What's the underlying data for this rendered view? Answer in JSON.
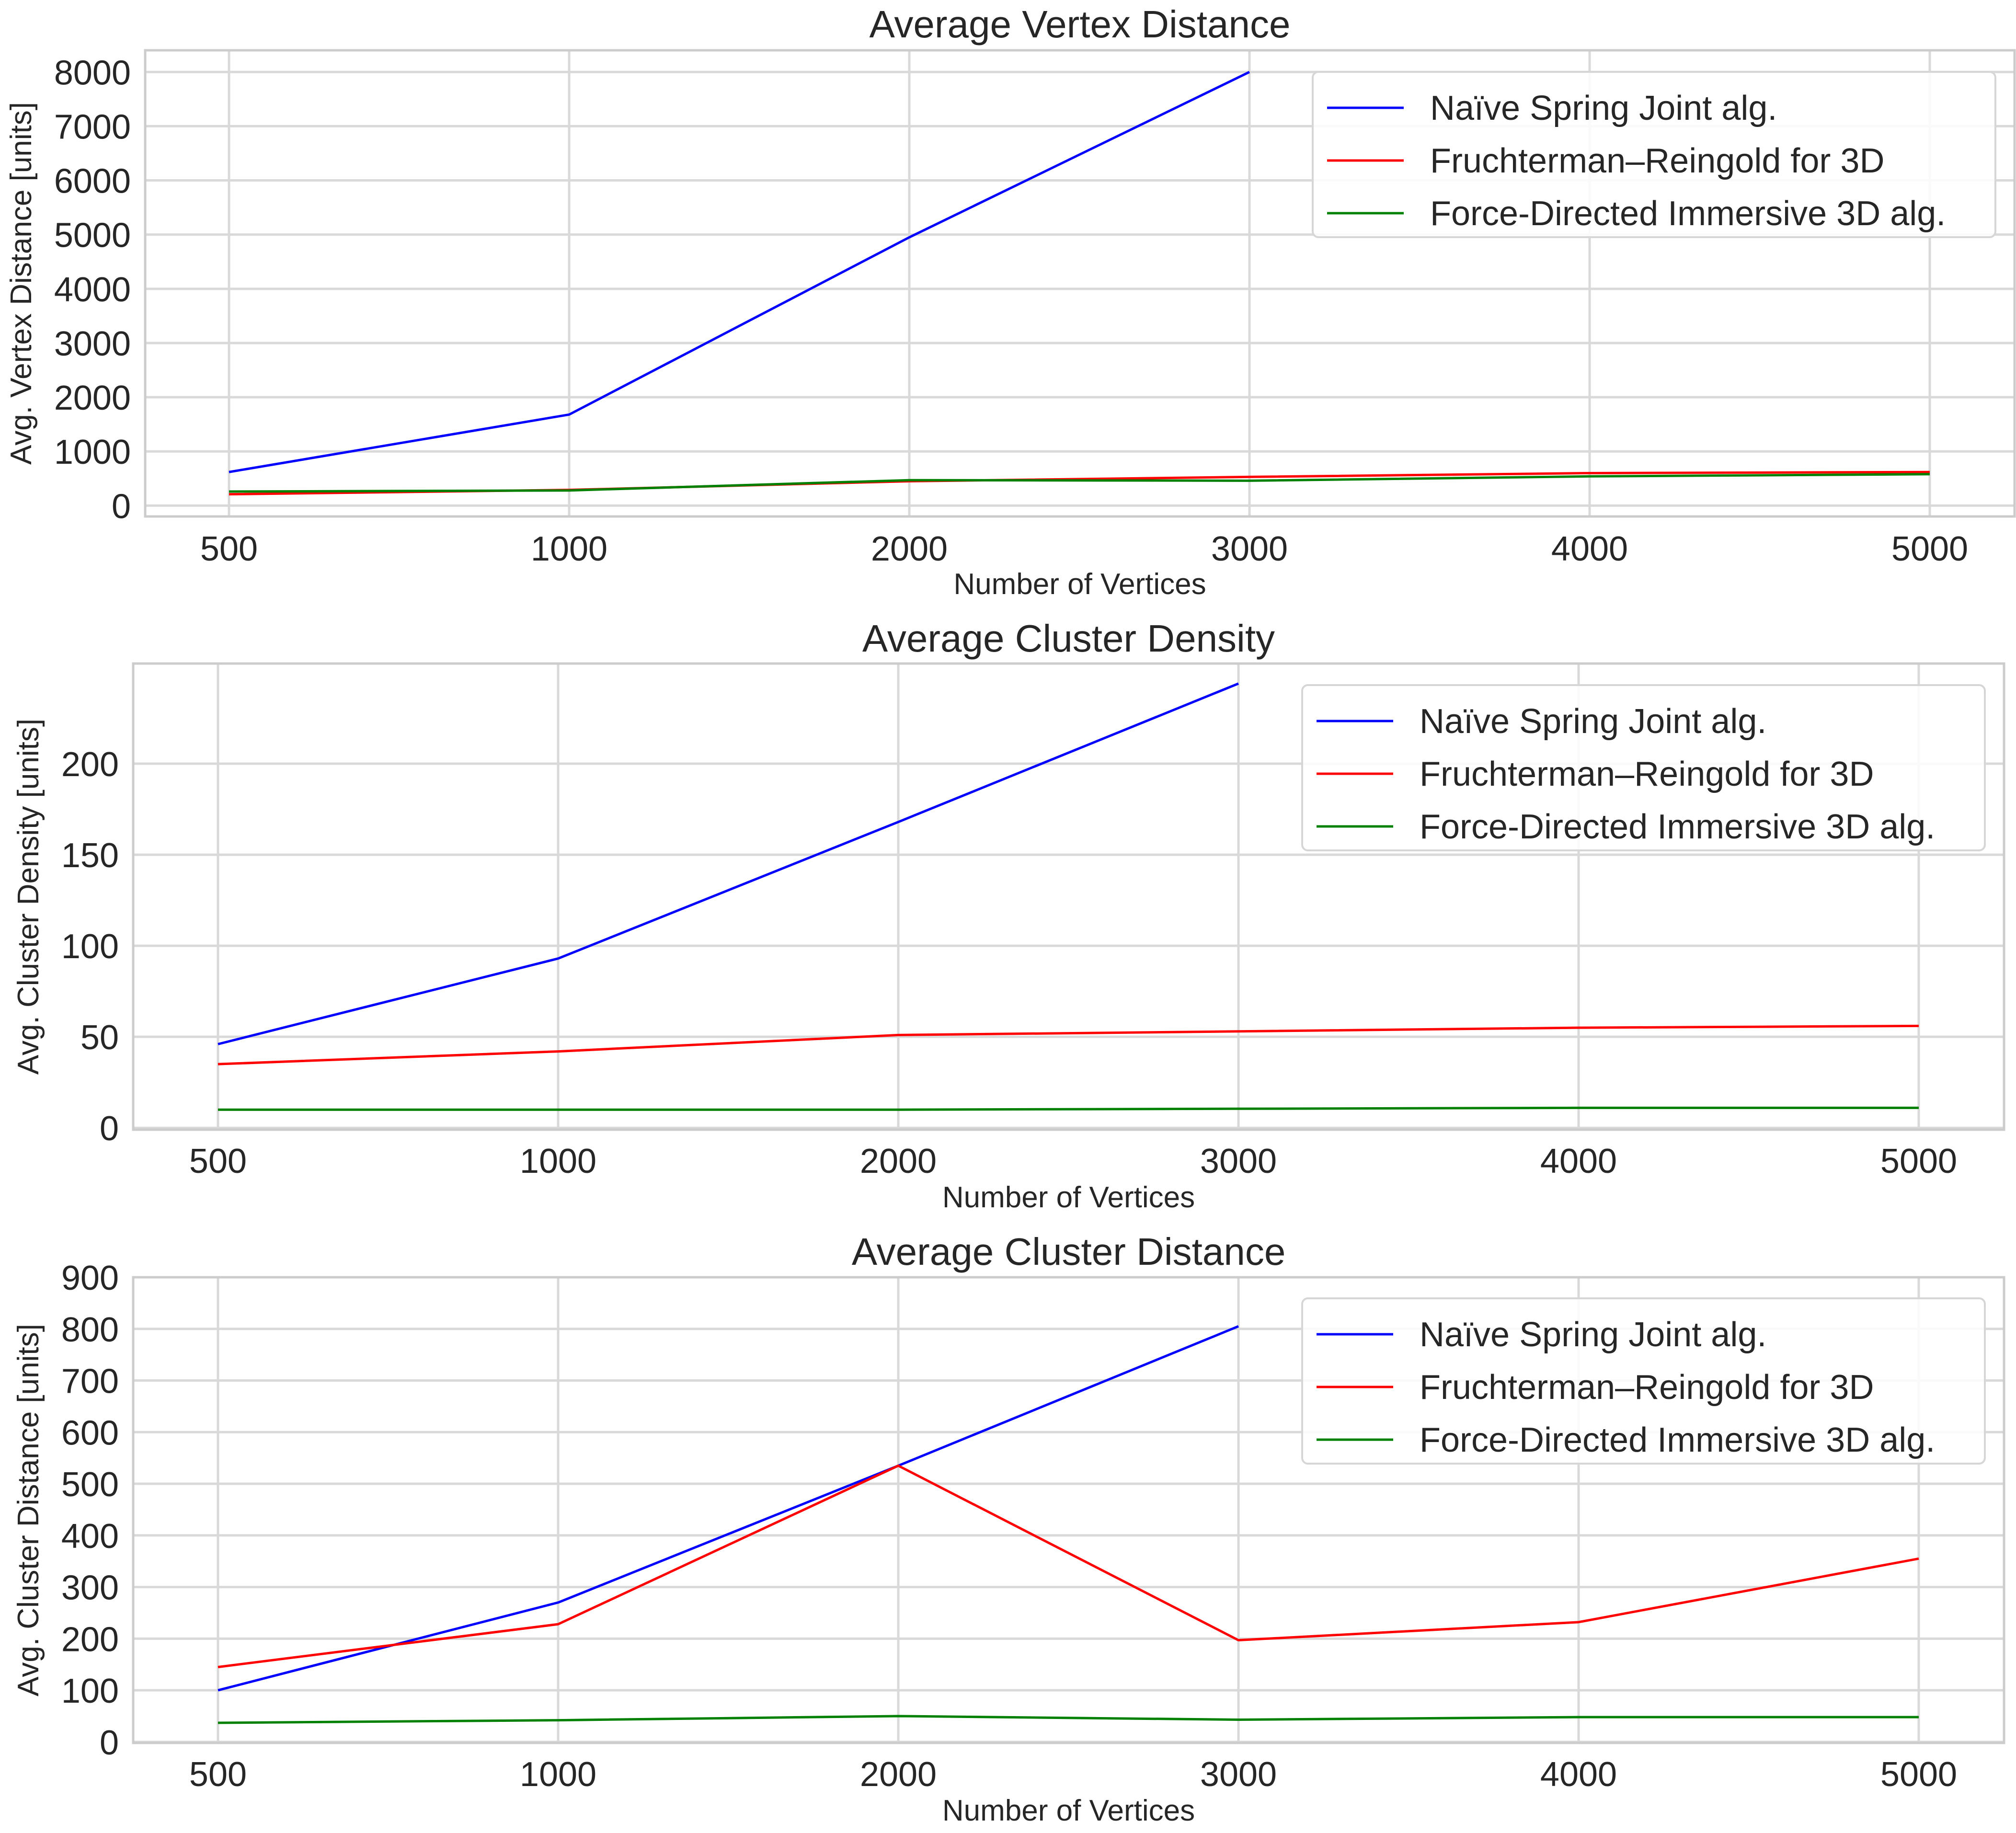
{
  "chart_data": [
    {
      "type": "line",
      "title": "Average Vertex Distance",
      "xlabel": "Number of Vertices",
      "ylabel": "Avg. Vertex Distance [units]",
      "categories": [
        "500",
        "1000",
        "2000",
        "3000",
        "4000",
        "5000"
      ],
      "y_ticks": [
        "0",
        "1000",
        "2000",
        "3000",
        "4000",
        "5000",
        "6000",
        "7000",
        "8000"
      ],
      "ylim": [
        -200,
        8400
      ],
      "grid": true,
      "legend_position": "upper right",
      "series": [
        {
          "name": "Naïve Spring Joint alg.",
          "color": "#0000ff",
          "values": [
            620,
            1680,
            4950,
            8000,
            null,
            null
          ]
        },
        {
          "name": "Fruchterman–Reingold for 3D",
          "color": "#ff0000",
          "values": [
            210,
            290,
            450,
            530,
            600,
            620
          ]
        },
        {
          "name": "Force-Directed Immersive 3D alg.",
          "color": "#008000",
          "values": [
            260,
            280,
            470,
            460,
            540,
            580
          ]
        }
      ]
    },
    {
      "type": "line",
      "title": "Average Cluster Density",
      "xlabel": "Number of Vertices",
      "ylabel": "Avg. Cluster Density [units]",
      "categories": [
        "500",
        "1000",
        "2000",
        "3000",
        "4000",
        "5000"
      ],
      "y_ticks": [
        "0",
        "50",
        "100",
        "150",
        "200"
      ],
      "ylim": [
        -1,
        255
      ],
      "grid": true,
      "legend_position": "upper right",
      "series": [
        {
          "name": "Naïve Spring Joint alg.",
          "color": "#0000ff",
          "values": [
            46,
            93,
            168,
            244,
            null,
            null
          ]
        },
        {
          "name": "Fruchterman–Reingold for 3D",
          "color": "#ff0000",
          "values": [
            35,
            42,
            51,
            53,
            55,
            56
          ]
        },
        {
          "name": "Force-Directed Immersive 3D alg.",
          "color": "#008000",
          "values": [
            10,
            10,
            10,
            10.5,
            11,
            11
          ]
        }
      ]
    },
    {
      "type": "line",
      "title": "Average Cluster Distance",
      "xlabel": "Number of Vertices",
      "ylabel": "Avg. Cluster Distance [units]",
      "categories": [
        "500",
        "1000",
        "2000",
        "3000",
        "4000",
        "5000"
      ],
      "y_ticks": [
        "0",
        "100",
        "200",
        "300",
        "400",
        "500",
        "600",
        "700",
        "800",
        "900"
      ],
      "ylim": [
        -2,
        900
      ],
      "grid": true,
      "legend_position": "upper right",
      "series": [
        {
          "name": "Naïve Spring Joint alg.",
          "color": "#0000ff",
          "values": [
            100,
            270,
            535,
            805,
            null,
            null
          ]
        },
        {
          "name": "Fruchterman–Reingold for 3D",
          "color": "#ff0000",
          "values": [
            145,
            228,
            535,
            197,
            232,
            355
          ]
        },
        {
          "name": "Force-Directed Immersive 3D alg.",
          "color": "#008000",
          "values": [
            37,
            42,
            50,
            43,
            48,
            48
          ]
        }
      ]
    }
  ]
}
